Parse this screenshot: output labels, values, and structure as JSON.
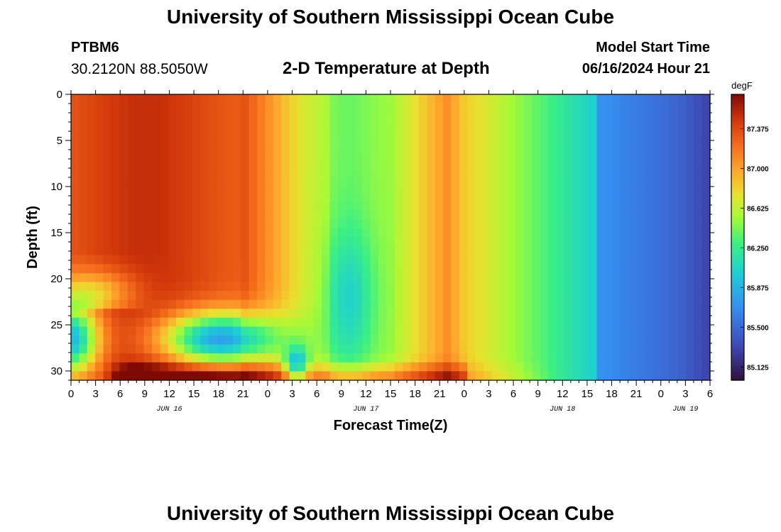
{
  "header": {
    "title": "University of Southern Mississippi Ocean Cube",
    "station": "PTBM6",
    "coords": "30.2120N  88.5050W",
    "subtitle": "2-D Temperature at Depth",
    "start_label": "Model Start Time",
    "start_value": "06/16/2024 Hour 21"
  },
  "footer": {
    "title": "University of Southern Mississippi Ocean Cube"
  },
  "chart_data": {
    "type": "heatmap",
    "title": "2-D Temperature at Depth",
    "xlabel": "Forecast Time(Z)",
    "ylabel": "Depth (ft)",
    "units": "degF",
    "x_range_hours": [
      0,
      78
    ],
    "y_range_ft": [
      0,
      31
    ],
    "x_ticks": [
      "0",
      "3",
      "6",
      "9",
      "12",
      "15",
      "18",
      "21",
      "0",
      "3",
      "6",
      "9",
      "12",
      "15",
      "18",
      "21",
      "0",
      "3",
      "6",
      "9",
      "12",
      "15",
      "18",
      "21",
      "0",
      "3",
      "6"
    ],
    "y_ticks": [
      "0",
      "5",
      "10",
      "15",
      "20",
      "25",
      "30"
    ],
    "day_labels": [
      {
        "label": "JUN 16",
        "hour": 12
      },
      {
        "label": "JUN 17",
        "hour": 36
      },
      {
        "label": "JUN 18",
        "hour": 60
      },
      {
        "label": "JUN 19",
        "hour": 75
      }
    ],
    "colorbar": {
      "min": 85.0,
      "max": 87.7,
      "labels": [
        "87.375",
        "87.000",
        "86.625",
        "86.250",
        "85.875",
        "85.500",
        "85.125"
      ],
      "label_values": [
        87.375,
        87.0,
        86.625,
        86.25,
        85.875,
        85.5,
        85.125
      ]
    },
    "grid": {
      "nx": 79,
      "ny": 32,
      "dx_hours": 1,
      "dy_ft": 1
    },
    "regions": [
      {
        "name": "warm-upper-left",
        "hours": [
          0,
          24
        ],
        "depth_ft": [
          0,
          17
        ],
        "approx_degF": 87.4
      },
      {
        "name": "cool-lens-left",
        "hours": [
          0,
          4
        ],
        "depth_ft": [
          22,
          30
        ],
        "approx_degF": 85.7
      },
      {
        "name": "cool-lens-mid",
        "hours": [
          10,
          30
        ],
        "depth_ft": [
          23,
          30
        ],
        "approx_degF": 85.6
      },
      {
        "name": "warm-bottom-band",
        "hours": [
          4,
          48
        ],
        "depth_ft": [
          29,
          31
        ],
        "approx_degF": 87.2
      },
      {
        "name": "green-column",
        "hours": [
          32,
          38
        ],
        "depth_ft": [
          0,
          27
        ],
        "approx_degF": 86.45
      },
      {
        "name": "cooling-trend",
        "hours": [
          48,
          78
        ],
        "depth_ft": [
          0,
          31
        ],
        "approx_degF": 85.3
      }
    ]
  }
}
